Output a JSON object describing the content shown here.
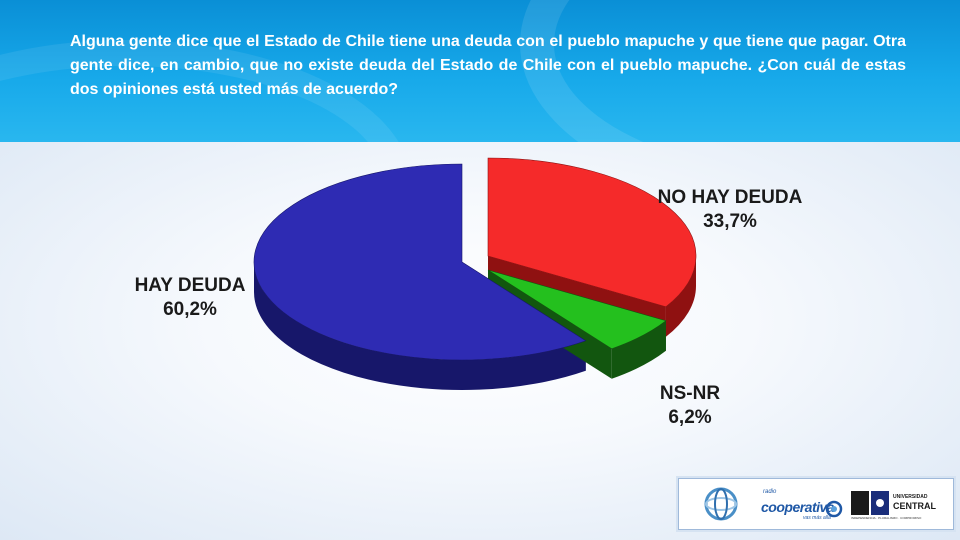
{
  "header": {
    "question": "Alguna gente dice que el Estado de Chile tiene una deuda con el pueblo mapuche y que tiene que pagar. Otra gente dice, en cambio, que no existe deuda del Estado de Chile con el pueblo mapuche. ¿Con cuál de estas dos opiniones está usted más de acuerdo?"
  },
  "chart_data": {
    "type": "pie",
    "style": "3d-exploded",
    "slices": [
      {
        "label": "NO HAY DEUDA",
        "value": 33.7,
        "value_label": "33,7%",
        "color": "#f52a2a",
        "side_color": "#8f1111"
      },
      {
        "label": "NS-NR",
        "value": 6.2,
        "value_label": "6,2%",
        "color": "#24c01e",
        "side_color": "#12560f"
      },
      {
        "label": "HAY DEUDA",
        "value": 60.2,
        "value_label": "60,2%",
        "color": "#2e2bb3",
        "side_color": "#17176a"
      }
    ]
  },
  "footer": {
    "radio_prefix": "radio",
    "radio_name": "cooperativa",
    "radio_sub": "vas más allá",
    "university_name_top": "UNIVERSIDAD",
    "university_name": "CENTRAL",
    "university_motto": "INDEPENDENCIA · PLURALISMO · COMPROMISO"
  },
  "colors": {
    "header_blue": "#17a9ea",
    "footer_border": "#9fb9da",
    "radio_blue": "#1f58a6"
  }
}
